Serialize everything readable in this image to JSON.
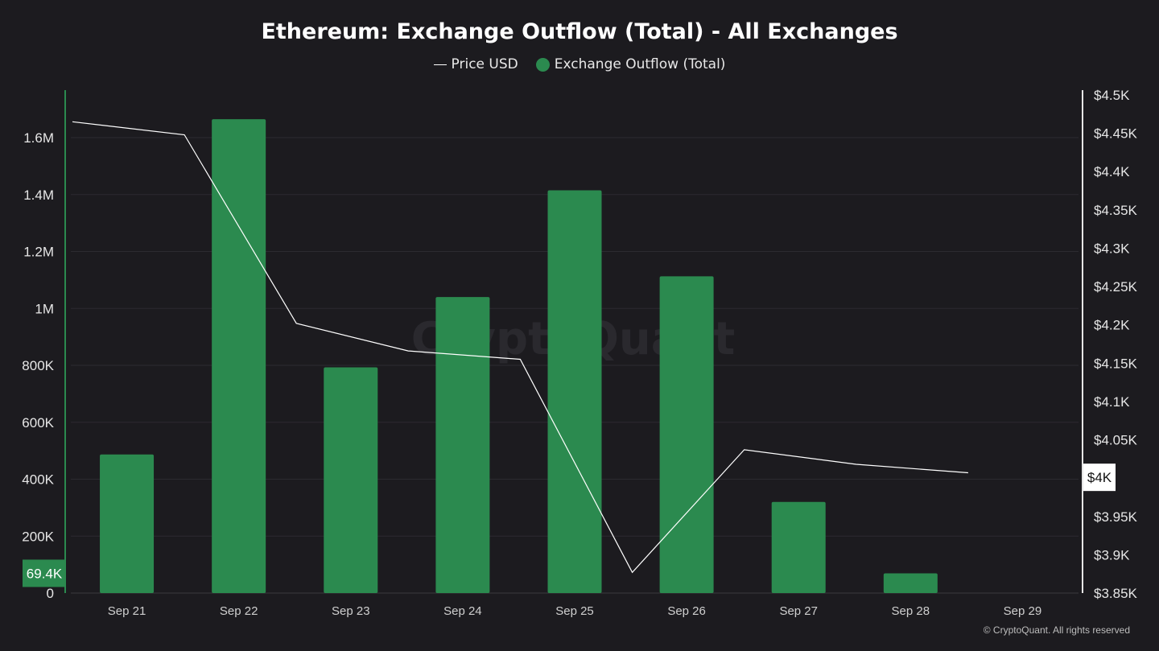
{
  "chart_data": {
    "type": "bar+line",
    "title": "Ethereum: Exchange Outflow (Total) - All Exchanges",
    "legend": [
      "Price USD",
      "Exchange Outflow (Total)"
    ],
    "categories": [
      "Sep 21",
      "Sep 22",
      "Sep 23",
      "Sep 24",
      "Sep 25",
      "Sep 26",
      "Sep 27",
      "Sep 28",
      "Sep 29"
    ],
    "series": [
      {
        "name": "Exchange Outflow (Total)",
        "type": "bar",
        "axis": "left",
        "color": "#2b8a4f",
        "values": [
          487000,
          1665000,
          793000,
          1040000,
          1415000,
          1113000,
          320000,
          69400,
          null
        ]
      },
      {
        "name": "Price USD",
        "type": "line",
        "axis": "right",
        "color": "#ffffff",
        "values": [
          4465,
          4448,
          4202,
          4166,
          4155,
          3877,
          4037,
          4018,
          4007
        ]
      }
    ],
    "left_axis": {
      "ylim": [
        0,
        1750000
      ],
      "ticks": [
        0,
        200000,
        400000,
        600000,
        800000,
        1000000,
        1200000,
        1400000,
        1600000
      ],
      "tick_labels": [
        "0",
        "200K",
        "400K",
        "600K",
        "800K",
        "1M",
        "1.2M",
        "1.4M",
        "1.6M"
      ]
    },
    "right_axis": {
      "ylim": [
        3850,
        4500
      ],
      "ticks": [
        3850,
        3900,
        3950,
        4000,
        4050,
        4100,
        4150,
        4200,
        4250,
        4300,
        4350,
        4400,
        4450,
        4500
      ],
      "tick_labels": [
        "$3.85K",
        "$3.9K",
        "$3.95K",
        "$4K",
        "$4.05K",
        "$4.1K",
        "$4.15K",
        "$4.2K",
        "$4.25K",
        "$4.3K",
        "$4.35K",
        "$4.4K",
        "$4.45K",
        "$4.5K"
      ]
    },
    "left_marker": "69.4K",
    "right_marker": "$4K",
    "watermark": "CryptoQuant"
  },
  "copyright": "© CryptoQuant. All rights reserved"
}
